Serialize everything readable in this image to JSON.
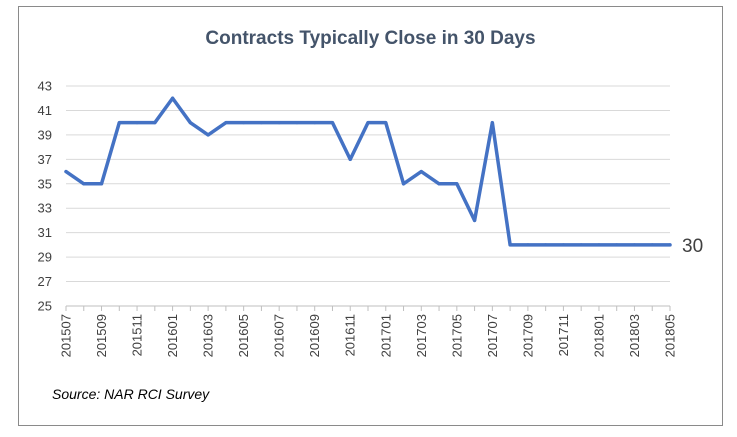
{
  "chart_data": {
    "type": "line",
    "title": "Contracts Typically Close in 30 Days",
    "source": "Source: NAR RCI Survey",
    "xlabel": "",
    "ylabel": "",
    "ylim": [
      25,
      43
    ],
    "yticks": [
      25,
      27,
      29,
      31,
      33,
      35,
      37,
      39,
      41,
      43
    ],
    "grid": true,
    "legend": "none",
    "line_color": "#4472c4",
    "end_label": "30",
    "xtick_labels": [
      "201507",
      "201509",
      "201511",
      "201601",
      "201603",
      "201605",
      "201607",
      "201609",
      "201611",
      "201701",
      "201703",
      "201705",
      "201707",
      "201709",
      "201711",
      "201801",
      "201803",
      "201805"
    ],
    "x": [
      "201507",
      "201508",
      "201509",
      "201510",
      "201511",
      "201512",
      "201601",
      "201602",
      "201603",
      "201604",
      "201605",
      "201606",
      "201607",
      "201608",
      "201609",
      "201610",
      "201611",
      "201612",
      "201701",
      "201702",
      "201703",
      "201704",
      "201705",
      "201706",
      "201707",
      "201708",
      "201709",
      "201710",
      "201711",
      "201712",
      "201801",
      "201802",
      "201803",
      "201804",
      "201805"
    ],
    "series": [
      {
        "values": [
          36,
          35,
          35,
          40,
          40,
          40,
          42,
          40,
          39,
          40,
          40,
          40,
          40,
          40,
          40,
          40,
          37,
          40,
          40,
          35,
          36,
          35,
          35,
          32,
          40,
          30,
          30,
          30,
          30,
          30,
          30,
          30,
          30,
          30,
          30
        ]
      }
    ]
  }
}
